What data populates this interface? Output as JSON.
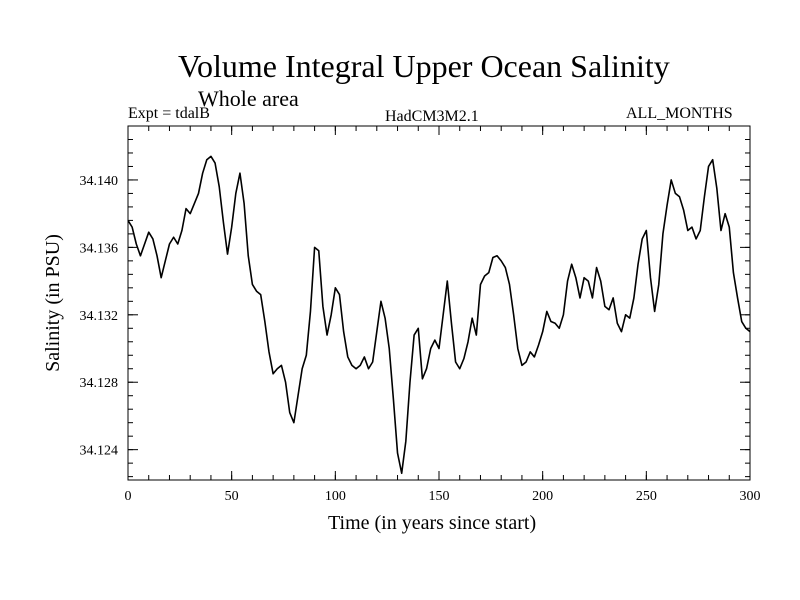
{
  "header": {
    "title": "Volume Integral Upper Ocean Salinity",
    "subtitle": "Whole area",
    "expt": "Expt = tdalB",
    "model": "HadCM3M2.1",
    "months": "ALL_MONTHS"
  },
  "chart_data": {
    "type": "line",
    "title": "Volume Integral Upper Ocean Salinity",
    "xlabel": "Time (in years since start)",
    "ylabel": "Salinity (in PSU)",
    "xlim": [
      0,
      300
    ],
    "ylim": [
      34.1222,
      34.1432
    ],
    "xticks": [
      0,
      50,
      100,
      150,
      200,
      250,
      300
    ],
    "xtick_labels": [
      "0",
      "50",
      "100",
      "150",
      "200",
      "250",
      "300"
    ],
    "yticks": [
      34.124,
      34.128,
      34.132,
      34.136,
      34.14
    ],
    "ytick_labels": [
      "34.124",
      "34.128",
      "34.132",
      "34.136",
      "34.140"
    ],
    "grid": false,
    "series": [
      {
        "name": "tdalB",
        "color": "#000000",
        "x": [
          0,
          2,
          4,
          6,
          8,
          10,
          12,
          14,
          16,
          18,
          20,
          22,
          24,
          26,
          28,
          30,
          32,
          34,
          36,
          38,
          40,
          42,
          44,
          46,
          48,
          50,
          52,
          54,
          56,
          58,
          60,
          62,
          64,
          66,
          68,
          70,
          72,
          74,
          76,
          78,
          80,
          82,
          84,
          86,
          88,
          90,
          92,
          94,
          96,
          98,
          100,
          102,
          104,
          106,
          108,
          110,
          112,
          114,
          116,
          118,
          120,
          122,
          124,
          126,
          128,
          130,
          132,
          134,
          136,
          138,
          140,
          142,
          144,
          146,
          148,
          150,
          152,
          154,
          156,
          158,
          160,
          162,
          164,
          166,
          168,
          170,
          172,
          174,
          176,
          178,
          180,
          182,
          184,
          186,
          188,
          190,
          192,
          194,
          196,
          198,
          200,
          202,
          204,
          206,
          208,
          210,
          212,
          214,
          216,
          218,
          220,
          222,
          224,
          226,
          228,
          230,
          232,
          234,
          236,
          238,
          240,
          242,
          244,
          246,
          248,
          250,
          252,
          254,
          256,
          258,
          260,
          262,
          264,
          266,
          268,
          270,
          272,
          274,
          276,
          278,
          280,
          282,
          284,
          286,
          288,
          290,
          292,
          294,
          296,
          298,
          300
        ],
        "values": [
          34.1376,
          34.1372,
          34.1362,
          34.1355,
          34.1362,
          34.1369,
          34.1365,
          34.1355,
          34.1342,
          34.1352,
          34.1362,
          34.1366,
          34.1362,
          34.137,
          34.1383,
          34.138,
          34.1386,
          34.1392,
          34.1404,
          34.1412,
          34.1414,
          34.141,
          34.1396,
          34.1375,
          34.1356,
          34.1372,
          34.1392,
          34.1404,
          34.1386,
          34.1355,
          34.1338,
          34.1334,
          34.1332,
          34.1316,
          34.1298,
          34.1285,
          34.1288,
          34.129,
          34.128,
          34.1262,
          34.1256,
          34.1272,
          34.1288,
          34.1296,
          34.1322,
          34.136,
          34.1358,
          34.1325,
          34.1308,
          34.132,
          34.1336,
          34.1332,
          34.131,
          34.1295,
          34.129,
          34.1288,
          34.129,
          34.1295,
          34.1288,
          34.1292,
          34.131,
          34.1328,
          34.1318,
          34.13,
          34.127,
          34.1238,
          34.1226,
          34.1245,
          34.128,
          34.1308,
          34.1312,
          34.1282,
          34.1288,
          34.13,
          34.1305,
          34.13,
          34.132,
          34.134,
          34.1315,
          34.1292,
          34.1288,
          34.1294,
          34.1304,
          34.1318,
          34.1308,
          34.1338,
          34.1343,
          34.1345,
          34.1354,
          34.1355,
          34.1352,
          34.1348,
          34.1338,
          34.132,
          34.13,
          34.129,
          34.1292,
          34.1298,
          34.1295,
          34.1302,
          34.131,
          34.1322,
          34.1316,
          34.1315,
          34.1312,
          34.132,
          34.134,
          34.135,
          34.1342,
          34.133,
          34.1342,
          34.134,
          34.133,
          34.1348,
          34.134,
          34.1325,
          34.1323,
          34.133,
          34.1315,
          34.131,
          34.132,
          34.1318,
          34.133,
          34.135,
          34.1365,
          34.137,
          34.1342,
          34.1322,
          34.1338,
          34.1368,
          34.1385,
          34.14,
          34.1392,
          34.139,
          34.1382,
          34.137,
          34.1372,
          34.1365,
          34.137,
          34.139,
          34.1408,
          34.1412,
          34.1395,
          34.137,
          34.138,
          34.1372,
          34.1345,
          34.133,
          34.1316,
          34.1312,
          34.131
        ]
      }
    ]
  }
}
